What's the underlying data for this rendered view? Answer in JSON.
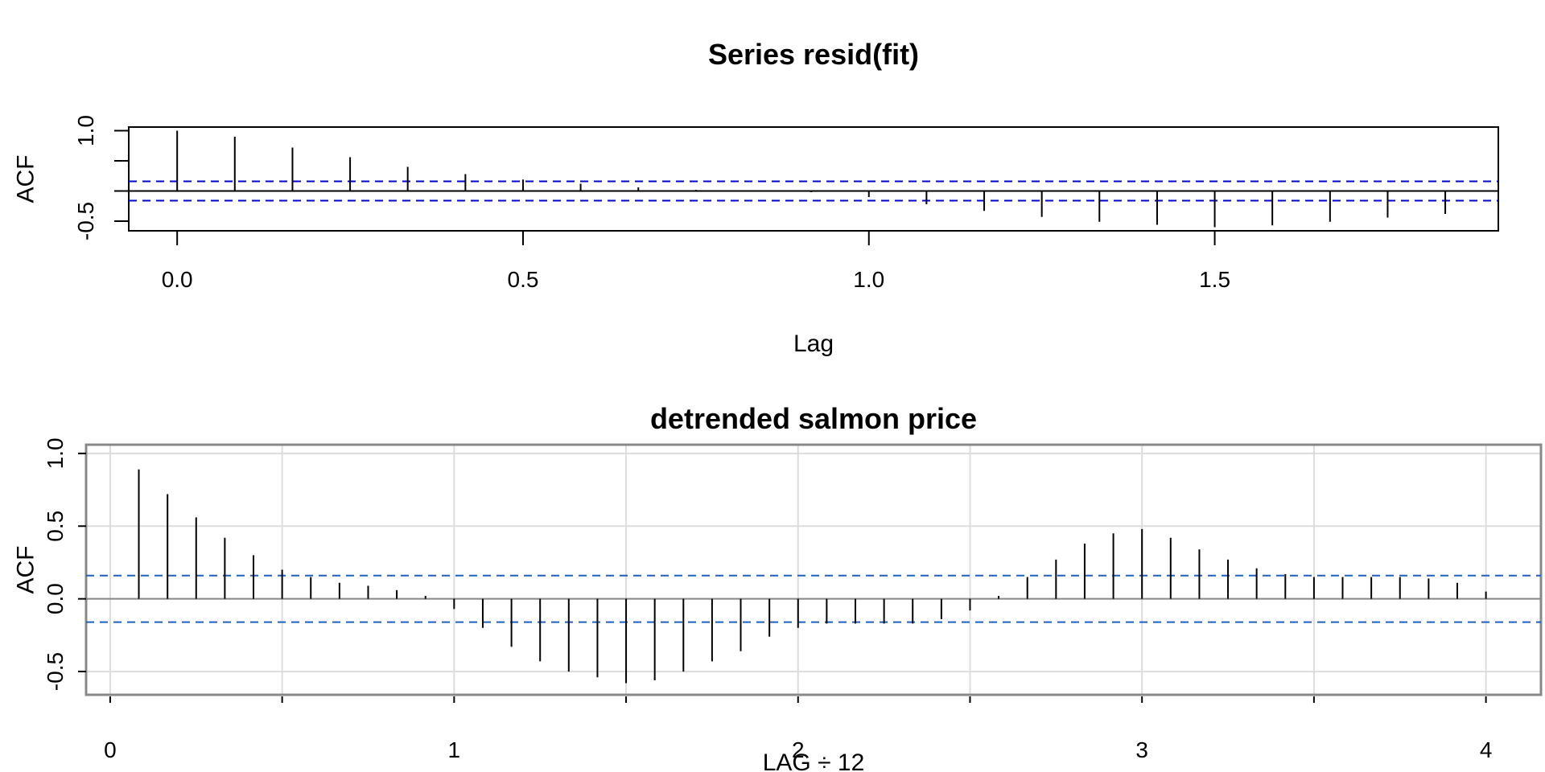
{
  "chart_data": [
    {
      "type": "bar",
      "title": "Series  resid(fit)",
      "xlabel": "Lag",
      "ylabel": "ACF",
      "xlim": [
        -0.07,
        1.91
      ],
      "ylim": [
        -0.66,
        1.06
      ],
      "xticks": [
        0.0,
        0.5,
        1.0,
        1.5
      ],
      "xtick_labels": [
        "0.0",
        "0.5",
        "1.0",
        "1.5"
      ],
      "yticks": [
        -0.5,
        0.0,
        0.5,
        1.0
      ],
      "ytick_labels": [
        "-0.5",
        "",
        "",
        "1.0"
      ],
      "grid": false,
      "conf_limit": 0.16,
      "conf_color": "#0000cd",
      "x": [
        0.0,
        0.0833,
        0.1667,
        0.25,
        0.3333,
        0.4167,
        0.5,
        0.5833,
        0.6667,
        0.75,
        0.8333,
        0.9167,
        1.0,
        1.0833,
        1.1667,
        1.25,
        1.3333,
        1.4167,
        1.5,
        1.5833,
        1.6667,
        1.75,
        1.8333
      ],
      "values": [
        1.0,
        0.9,
        0.72,
        0.56,
        0.4,
        0.28,
        0.19,
        0.12,
        0.06,
        0.02,
        0.01,
        -0.02,
        -0.1,
        -0.22,
        -0.33,
        -0.43,
        -0.51,
        -0.56,
        -0.6,
        -0.57,
        -0.51,
        -0.44,
        -0.38
      ]
    },
    {
      "type": "bar",
      "title": "detrended salmon price",
      "xlabel": "LAG ÷ 12",
      "ylabel": "ACF",
      "xlim": [
        -0.07,
        4.16
      ],
      "ylim": [
        -0.66,
        1.06
      ],
      "xticks": [
        0,
        1,
        2,
        3,
        4
      ],
      "xtick_labels": [
        "0",
        "1",
        "2",
        "3",
        "4"
      ],
      "minor_xticks": [
        0.5,
        1.5,
        2.5,
        3.5
      ],
      "yticks": [
        -0.5,
        0.0,
        0.5,
        1.0
      ],
      "ytick_labels": [
        "-0.5",
        "0.0",
        "0.5",
        "1.0"
      ],
      "grid": true,
      "conf_limit": 0.16,
      "conf_color": "#1f5fbf",
      "x": [
        0.0833,
        0.1667,
        0.25,
        0.3333,
        0.4167,
        0.5,
        0.5833,
        0.6667,
        0.75,
        0.8333,
        0.9167,
        1.0,
        1.0833,
        1.1667,
        1.25,
        1.3333,
        1.4167,
        1.5,
        1.5833,
        1.6667,
        1.75,
        1.8333,
        1.9167,
        2.0,
        2.0833,
        2.1667,
        2.25,
        2.3333,
        2.4167,
        2.5,
        2.5833,
        2.6667,
        2.75,
        2.8333,
        2.9167,
        3.0,
        3.0833,
        3.1667,
        3.25,
        3.3333,
        3.4167,
        3.5,
        3.5833,
        3.6667,
        3.75,
        3.8333,
        3.9167,
        4.0
      ],
      "values": [
        0.89,
        0.72,
        0.56,
        0.42,
        0.3,
        0.2,
        0.15,
        0.11,
        0.09,
        0.06,
        0.02,
        -0.07,
        -0.2,
        -0.33,
        -0.43,
        -0.5,
        -0.54,
        -0.58,
        -0.56,
        -0.5,
        -0.43,
        -0.36,
        -0.26,
        -0.2,
        -0.17,
        -0.17,
        -0.17,
        -0.17,
        -0.14,
        -0.08,
        0.02,
        0.15,
        0.27,
        0.38,
        0.45,
        0.48,
        0.42,
        0.34,
        0.27,
        0.21,
        0.17,
        0.15,
        0.15,
        0.15,
        0.15,
        0.14,
        0.11,
        0.05
      ]
    }
  ]
}
